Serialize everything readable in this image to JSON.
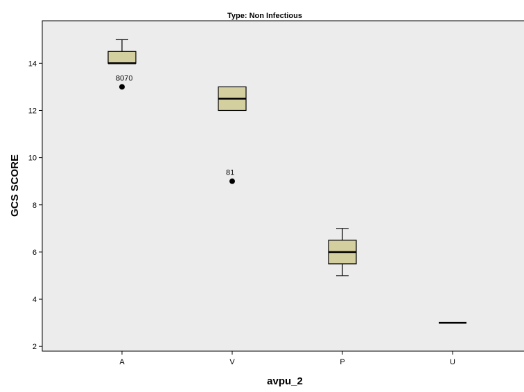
{
  "chart_data": {
    "type": "boxplot",
    "title": "Type: Non Infectious",
    "xlabel": "avpu_2",
    "ylabel": "GCS SCORE",
    "ylim": [
      1.8,
      15.8
    ],
    "yticks": [
      2,
      4,
      6,
      8,
      10,
      12,
      14
    ],
    "categories": [
      "A",
      "V",
      "P",
      "U"
    ],
    "boxes": [
      {
        "category": "A",
        "whisker_low": 14,
        "q1": 14,
        "median": 14,
        "q3": 14.5,
        "whisker_high": 15
      },
      {
        "category": "V",
        "whisker_low": 12,
        "q1": 12,
        "median": 12.5,
        "q3": 13,
        "whisker_high": 13
      },
      {
        "category": "P",
        "whisker_low": 5,
        "q1": 5.5,
        "median": 6,
        "q3": 6.5,
        "whisker_high": 7
      },
      {
        "category": "U",
        "whisker_low": 3,
        "q1": 3,
        "median": 3,
        "q3": 3,
        "whisker_high": 3
      }
    ],
    "outliers": [
      {
        "category": "A",
        "value": 13,
        "label": "8070"
      },
      {
        "category": "V",
        "value": 9,
        "label": "81"
      }
    ],
    "grid": false,
    "colors": {
      "plot_background": "#ececec",
      "box_fill": "#d4cf9e",
      "line": "#000000"
    }
  }
}
